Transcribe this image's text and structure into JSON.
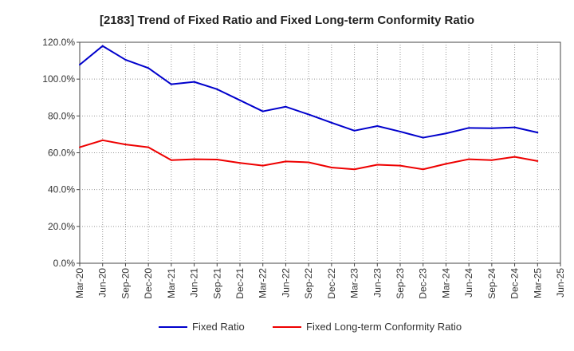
{
  "chart_data": {
    "type": "line",
    "title": "[2183]  Trend of Fixed Ratio and Fixed Long-term Conformity Ratio",
    "xlabel": "",
    "ylabel": "",
    "categories": [
      "Mar-20",
      "Jun-20",
      "Sep-20",
      "Dec-20",
      "Mar-21",
      "Jun-21",
      "Sep-21",
      "Dec-21",
      "Mar-22",
      "Jun-22",
      "Sep-22",
      "Dec-22",
      "Mar-23",
      "Jun-23",
      "Sep-23",
      "Dec-23",
      "Mar-24",
      "Jun-24",
      "Sep-24",
      "Dec-24",
      "Mar-25",
      "Jun-25"
    ],
    "ylim": [
      0,
      120
    ],
    "yticks": [
      "0.0%",
      "20.0%",
      "40.0%",
      "60.0%",
      "80.0%",
      "100.0%",
      "120.0%"
    ],
    "grid": true,
    "legend": "bottom",
    "series": [
      {
        "name": "Fixed Ratio",
        "color": "#0000cc",
        "values": [
          107.8,
          118.0,
          110.5,
          106.0,
          97.2,
          98.5,
          94.5,
          88.5,
          82.5,
          85.0,
          80.8,
          76.3,
          72.0,
          74.5,
          71.5,
          68.2,
          70.5,
          73.5,
          73.3,
          73.8,
          71.0,
          null
        ]
      },
      {
        "name": "Fixed Long-term Conformity Ratio",
        "color": "#ee0000",
        "values": [
          63.0,
          66.8,
          64.5,
          63.0,
          56.0,
          56.5,
          56.3,
          54.5,
          53.0,
          55.3,
          54.8,
          52.0,
          51.0,
          53.5,
          53.0,
          51.0,
          54.0,
          56.5,
          56.0,
          57.8,
          55.5,
          null
        ]
      }
    ]
  }
}
